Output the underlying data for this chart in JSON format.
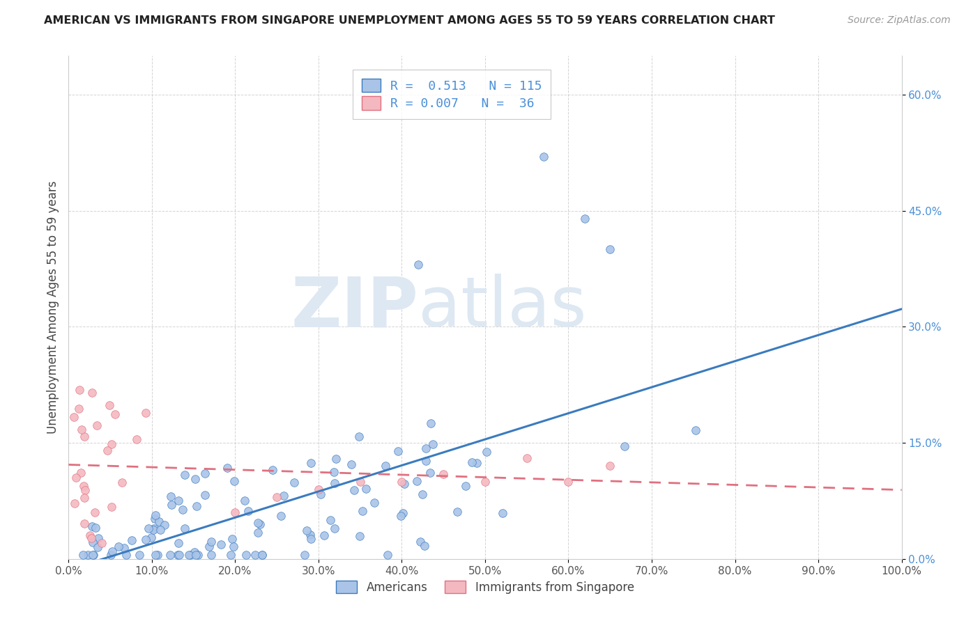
{
  "title": "AMERICAN VS IMMIGRANTS FROM SINGAPORE UNEMPLOYMENT AMONG AGES 55 TO 59 YEARS CORRELATION CHART",
  "source": "Source: ZipAtlas.com",
  "ylabel": "Unemployment Among Ages 55 to 59 years",
  "xlim": [
    0.0,
    1.0
  ],
  "ylim": [
    0.0,
    0.65
  ],
  "xticks": [
    0.0,
    0.1,
    0.2,
    0.3,
    0.4,
    0.5,
    0.6,
    0.7,
    0.8,
    0.9,
    1.0
  ],
  "xticklabels": [
    "0.0%",
    "10.0%",
    "20.0%",
    "30.0%",
    "40.0%",
    "50.0%",
    "60.0%",
    "70.0%",
    "80.0%",
    "90.0%",
    "100.0%"
  ],
  "yticks": [
    0.0,
    0.15,
    0.3,
    0.45,
    0.6
  ],
  "yticklabels": [
    "0.0%",
    "15.0%",
    "30.0%",
    "45.0%",
    "60.0%"
  ],
  "legend_labels": [
    "Americans",
    "Immigrants from Singapore"
  ],
  "americans_color": "#aac4e8",
  "singapore_color": "#f4b8c0",
  "americans_line_color": "#3a7bbf",
  "singapore_line_color": "#e07080",
  "watermark_ZIP": "ZIP",
  "watermark_atlas": "atlas",
  "R_american": 0.513,
  "N_american": 115,
  "R_singapore": 0.007,
  "N_singapore": 36,
  "background_color": "#ffffff",
  "grid_color": "#c8c8c8",
  "title_color": "#222222",
  "source_color": "#999999",
  "axis_label_color": "#444444",
  "tick_color_y": "#4a90d9",
  "tick_color_x": "#555555"
}
